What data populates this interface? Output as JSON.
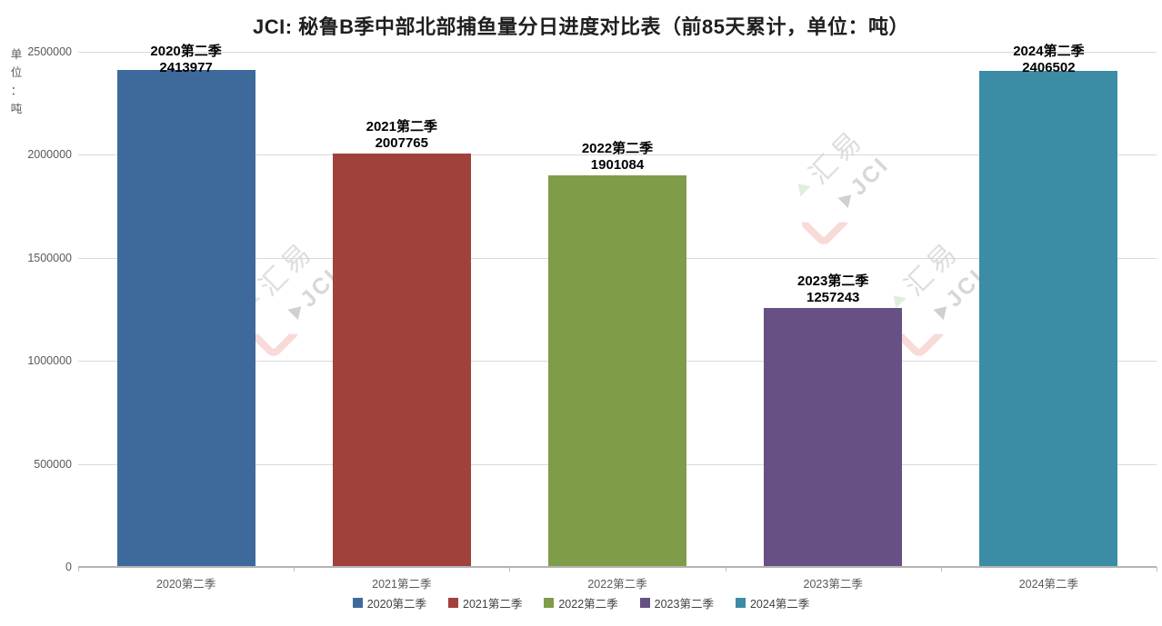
{
  "title": "JCI: 秘鲁B季中部北部捕鱼量分日进度对比表（前85天累计，单位：吨）",
  "y_axis_unit_vertical": "单\n位\n：\n吨",
  "watermark": {
    "text_top": "汇易",
    "text_bottom": "JCI"
  },
  "chart_data": {
    "type": "bar",
    "title": "JCI: 秘鲁B季中部北部捕鱼量分日进度对比表（前85天累计，单位：吨）",
    "xlabel": "",
    "ylabel": "单位：吨",
    "categories": [
      "2020第二季",
      "2021第二季",
      "2022第二季",
      "2023第二季",
      "2024第二季"
    ],
    "values": [
      2413977,
      2007765,
      1901084,
      1257243,
      2406502
    ],
    "colors": [
      "#3E6A9B",
      "#A1413C",
      "#7F9C49",
      "#665084",
      "#3B8CA4"
    ],
    "ylim": [
      0,
      2500000
    ],
    "yticks": [
      0,
      500000,
      1000000,
      1500000,
      2000000,
      2500000
    ],
    "grid": true,
    "legend_position": "bottom",
    "legend": [
      "2020第二季",
      "2021第二季",
      "2022第二季",
      "2023第二季",
      "2024第二季"
    ]
  },
  "colors": {
    "background": "#ffffff",
    "gridline": "#d9d9d9",
    "baseline": "#b3b3b3",
    "tick": "#bfbfbf",
    "axis_text": "#595959",
    "legend_text": "#404040",
    "title_text": "#1f1f1f",
    "data_label_text": "#000000"
  }
}
